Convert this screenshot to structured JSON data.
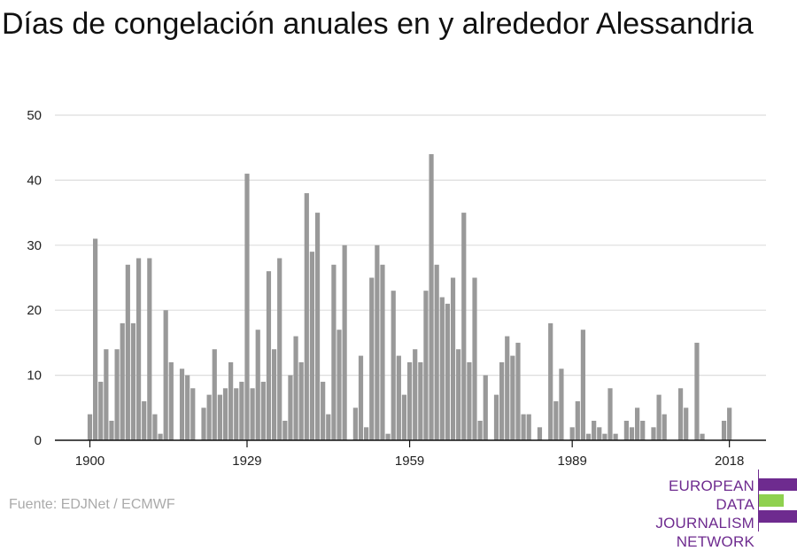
{
  "title": "Días de congelación anuales en y alrededor Alessandria",
  "source": "Fuente: EDJNet / ECMWF",
  "logo": {
    "lines": [
      "EUROPEAN",
      "DATA JOURNALISM",
      "NETWORK"
    ],
    "colors": {
      "purple": "#6e2b8f",
      "green": "#8fd14f"
    }
  },
  "chart_data": {
    "type": "bar",
    "title": "Días de congelación anuales en y alrededor Alessandria",
    "xlabel": "",
    "ylabel": "",
    "ylim": [
      0,
      50
    ],
    "yticks": [
      0,
      10,
      20,
      30,
      40,
      50
    ],
    "xticks": [
      1900,
      1929,
      1959,
      1989,
      2018
    ],
    "grid": true,
    "bar_color": "#999999",
    "x": [
      1900,
      1901,
      1902,
      1903,
      1904,
      1905,
      1906,
      1907,
      1908,
      1909,
      1910,
      1911,
      1912,
      1913,
      1914,
      1915,
      1916,
      1917,
      1918,
      1919,
      1920,
      1921,
      1922,
      1923,
      1924,
      1925,
      1926,
      1927,
      1928,
      1929,
      1930,
      1931,
      1932,
      1933,
      1934,
      1935,
      1936,
      1937,
      1938,
      1939,
      1940,
      1941,
      1942,
      1943,
      1944,
      1945,
      1946,
      1947,
      1948,
      1949,
      1950,
      1951,
      1952,
      1953,
      1954,
      1955,
      1956,
      1957,
      1958,
      1959,
      1960,
      1961,
      1962,
      1963,
      1964,
      1965,
      1966,
      1967,
      1968,
      1969,
      1970,
      1971,
      1972,
      1973,
      1974,
      1975,
      1976,
      1977,
      1978,
      1979,
      1980,
      1981,
      1982,
      1983,
      1984,
      1985,
      1986,
      1987,
      1988,
      1989,
      1990,
      1991,
      1992,
      1993,
      1994,
      1995,
      1996,
      1997,
      1998,
      1999,
      2000,
      2001,
      2002,
      2003,
      2004,
      2005,
      2006,
      2007,
      2008,
      2009,
      2010,
      2011,
      2012,
      2013,
      2014,
      2015,
      2016,
      2017,
      2018,
      2019
    ],
    "values": [
      4,
      31,
      9,
      14,
      3,
      14,
      18,
      27,
      18,
      28,
      6,
      28,
      4,
      1,
      20,
      12,
      0,
      11,
      10,
      8,
      0,
      5,
      7,
      14,
      7,
      8,
      12,
      8,
      9,
      41,
      8,
      17,
      9,
      26,
      14,
      28,
      3,
      10,
      16,
      12,
      38,
      29,
      35,
      9,
      4,
      27,
      17,
      30,
      0,
      5,
      13,
      2,
      25,
      30,
      27,
      1,
      23,
      13,
      7,
      12,
      14,
      12,
      23,
      44,
      27,
      22,
      21,
      25,
      14,
      35,
      12,
      25,
      3,
      10,
      0,
      7,
      12,
      16,
      13,
      15,
      4,
      4,
      0,
      2,
      0,
      18,
      6,
      11,
      0,
      2,
      6,
      17,
      1,
      3,
      2,
      1,
      8,
      1,
      0,
      3,
      2,
      5,
      3,
      0,
      2,
      7,
      4,
      0,
      0,
      8,
      5,
      0,
      15,
      1,
      0,
      0,
      0,
      3,
      5,
      0
    ]
  }
}
